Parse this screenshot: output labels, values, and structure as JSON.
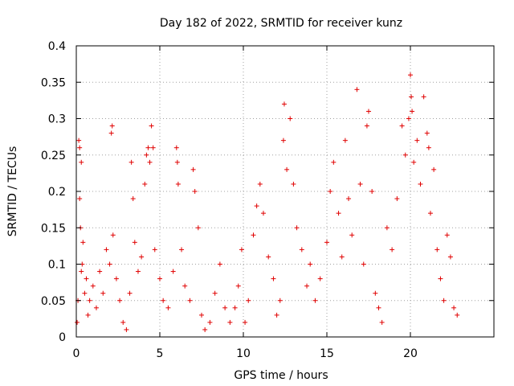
{
  "chart_data": {
    "type": "scatter",
    "title": "Day 182 of 2022, SRMTID for receiver kunz",
    "xlabel": "GPS time / hours",
    "ylabel": "SRMTID / TECUs",
    "xlim": [
      0,
      25
    ],
    "ylim": [
      0,
      0.4
    ],
    "x_ticks": [
      0,
      5,
      10,
      15,
      20
    ],
    "x_tick_labels": [
      "0",
      "5",
      "10",
      "15",
      "20"
    ],
    "y_ticks": [
      0,
      0.05,
      0.1,
      0.15,
      0.2,
      0.25,
      0.3,
      0.35,
      0.4
    ],
    "y_tick_labels": [
      "0",
      "0.05",
      "0.1",
      "0.15",
      "0.2",
      "0.25",
      "0.3",
      "0.35",
      "0.4"
    ],
    "grid": true,
    "marker": "+",
    "series": [
      {
        "name": "SRMTID",
        "color": "#e00000",
        "points": [
          [
            0.05,
            0.02
          ],
          [
            0.1,
            0.05
          ],
          [
            0.15,
            0.27
          ],
          [
            0.2,
            0.26
          ],
          [
            0.2,
            0.19
          ],
          [
            0.25,
            0.15
          ],
          [
            0.3,
            0.24
          ],
          [
            0.3,
            0.09
          ],
          [
            0.35,
            0.1
          ],
          [
            0.4,
            0.13
          ],
          [
            0.5,
            0.06
          ],
          [
            0.6,
            0.08
          ],
          [
            0.7,
            0.03
          ],
          [
            0.8,
            0.05
          ],
          [
            1.0,
            0.07
          ],
          [
            1.2,
            0.04
          ],
          [
            1.4,
            0.09
          ],
          [
            1.6,
            0.06
          ],
          [
            1.8,
            0.12
          ],
          [
            2.0,
            0.1
          ],
          [
            2.1,
            0.28
          ],
          [
            2.15,
            0.29
          ],
          [
            2.2,
            0.14
          ],
          [
            2.4,
            0.08
          ],
          [
            2.6,
            0.05
          ],
          [
            2.8,
            0.02
          ],
          [
            3.0,
            0.01
          ],
          [
            3.2,
            0.06
          ],
          [
            3.3,
            0.24
          ],
          [
            3.4,
            0.19
          ],
          [
            3.5,
            0.13
          ],
          [
            3.7,
            0.09
          ],
          [
            3.9,
            0.11
          ],
          [
            4.1,
            0.21
          ],
          [
            4.2,
            0.25
          ],
          [
            4.3,
            0.26
          ],
          [
            4.4,
            0.24
          ],
          [
            4.5,
            0.29
          ],
          [
            4.6,
            0.26
          ],
          [
            4.7,
            0.12
          ],
          [
            5.0,
            0.08
          ],
          [
            5.2,
            0.05
          ],
          [
            5.5,
            0.04
          ],
          [
            5.8,
            0.09
          ],
          [
            6.0,
            0.26
          ],
          [
            6.05,
            0.24
          ],
          [
            6.1,
            0.21
          ],
          [
            6.3,
            0.12
          ],
          [
            6.5,
            0.07
          ],
          [
            6.8,
            0.05
          ],
          [
            7.0,
            0.23
          ],
          [
            7.1,
            0.2
          ],
          [
            7.3,
            0.15
          ],
          [
            7.5,
            0.03
          ],
          [
            7.7,
            0.01
          ],
          [
            8.0,
            0.02
          ],
          [
            8.3,
            0.06
          ],
          [
            8.6,
            0.1
          ],
          [
            8.9,
            0.04
          ],
          [
            9.2,
            0.02
          ],
          [
            9.5,
            0.04
          ],
          [
            9.7,
            0.07
          ],
          [
            9.9,
            0.12
          ],
          [
            10.1,
            0.02
          ],
          [
            10.3,
            0.05
          ],
          [
            10.6,
            0.14
          ],
          [
            10.8,
            0.18
          ],
          [
            11.0,
            0.21
          ],
          [
            11.2,
            0.17
          ],
          [
            11.5,
            0.11
          ],
          [
            11.8,
            0.08
          ],
          [
            12.0,
            0.03
          ],
          [
            12.2,
            0.05
          ],
          [
            12.4,
            0.27
          ],
          [
            12.45,
            0.32
          ],
          [
            12.6,
            0.23
          ],
          [
            12.8,
            0.3
          ],
          [
            13.0,
            0.21
          ],
          [
            13.2,
            0.15
          ],
          [
            13.5,
            0.12
          ],
          [
            13.8,
            0.07
          ],
          [
            14.0,
            0.1
          ],
          [
            14.3,
            0.05
          ],
          [
            14.6,
            0.08
          ],
          [
            15.0,
            0.13
          ],
          [
            15.2,
            0.2
          ],
          [
            15.4,
            0.24
          ],
          [
            15.7,
            0.17
          ],
          [
            15.9,
            0.11
          ],
          [
            16.1,
            0.27
          ],
          [
            16.3,
            0.19
          ],
          [
            16.5,
            0.14
          ],
          [
            16.8,
            0.34
          ],
          [
            17.0,
            0.21
          ],
          [
            17.2,
            0.1
          ],
          [
            17.4,
            0.29
          ],
          [
            17.5,
            0.31
          ],
          [
            17.7,
            0.2
          ],
          [
            17.9,
            0.06
          ],
          [
            18.1,
            0.04
          ],
          [
            18.3,
            0.02
          ],
          [
            18.6,
            0.15
          ],
          [
            18.9,
            0.12
          ],
          [
            19.2,
            0.19
          ],
          [
            19.5,
            0.29
          ],
          [
            19.7,
            0.25
          ],
          [
            19.9,
            0.3
          ],
          [
            20.0,
            0.36
          ],
          [
            20.05,
            0.33
          ],
          [
            20.1,
            0.31
          ],
          [
            20.2,
            0.24
          ],
          [
            20.4,
            0.27
          ],
          [
            20.6,
            0.21
          ],
          [
            20.8,
            0.33
          ],
          [
            21.0,
            0.28
          ],
          [
            21.1,
            0.26
          ],
          [
            21.2,
            0.17
          ],
          [
            21.4,
            0.23
          ],
          [
            21.6,
            0.12
          ],
          [
            21.8,
            0.08
          ],
          [
            22.0,
            0.05
          ],
          [
            22.2,
            0.14
          ],
          [
            22.4,
            0.11
          ],
          [
            22.6,
            0.04
          ],
          [
            22.8,
            0.03
          ]
        ]
      }
    ]
  }
}
